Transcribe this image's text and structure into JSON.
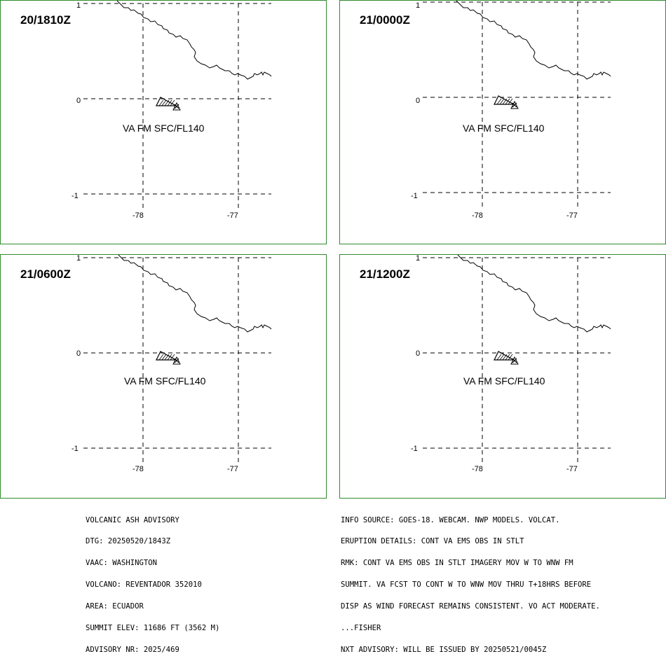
{
  "panels": [
    {
      "time": "20/1810Z",
      "va_label": "VA FM SFC/FL140"
    },
    {
      "time": "21/0000Z",
      "va_label": "VA FM SFC/FL140"
    },
    {
      "time": "21/0600Z",
      "va_label": "VA FM SFC/FL140"
    },
    {
      "time": "21/1200Z",
      "va_label": "VA FM SFC/FL140"
    }
  ],
  "axes": {
    "lat_labels": [
      "1",
      "0",
      "-1"
    ],
    "lon_labels": [
      "-78",
      "-77"
    ]
  },
  "colors": {
    "frame": "#2e8b2e",
    "lines": "#000000"
  },
  "advisory_left": [
    "VOLCANIC ASH ADVISORY",
    "DTG: 20250520/1843Z",
    "VAAC: WASHINGTON",
    "VOLCANO: REVENTADOR 352010",
    "AREA: ECUADOR",
    "SUMMIT ELEV: 11686 FT (3562 M)",
    "ADVISORY NR: 2025/469"
  ],
  "advisory_right": [
    "INFO SOURCE: GOES-18. WEBCAM. NWP MODELS. VOLCAT.",
    "ERUPTION DETAILS: CONT VA EMS OBS IN STLT",
    "RMK: CONT VA EMS OBS IN STLT IMAGERY MOV W TO WNW FM",
    "SUMMIT. VA FCST TO CONT W TO WNW MOV THRU T+18HRS BEFORE",
    "DISP AS WIND FORECAST REMAINS CONSISTENT. VO ACT MODERATE.",
    "...FISHER",
    "NXT ADVISORY: WILL BE ISSUED BY 20250521/0045Z"
  ]
}
